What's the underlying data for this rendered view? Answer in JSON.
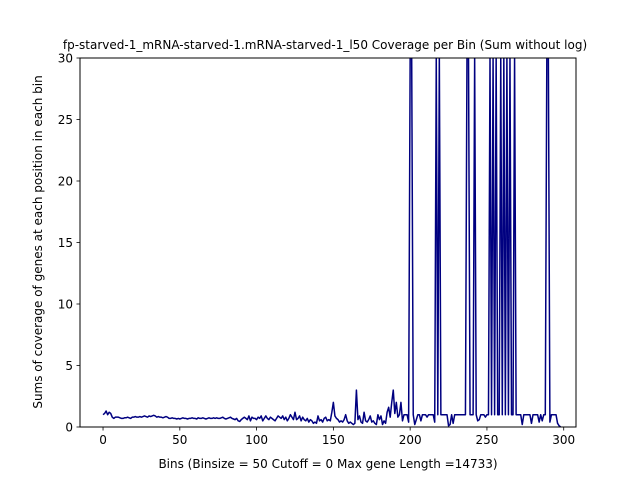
{
  "chart_data": {
    "type": "line",
    "title": "fp-starved-1_mRNA-starved-1.mRNA-starved-1_l50 Coverage per Bin (Sum without log)",
    "xlabel": "Bins  (Binsize = 50 Cutoff = 0 Max gene Length =14733)",
    "ylabel": "Sums of coverage of genes at each position in each bin",
    "xlim": [
      -15,
      308
    ],
    "ylim": [
      0,
      30
    ],
    "x_ticks": [
      0,
      50,
      100,
      150,
      200,
      250,
      300
    ],
    "y_ticks": [
      0,
      5,
      10,
      15,
      20,
      25,
      30
    ],
    "grid": false,
    "series": [
      {
        "color": "#000080",
        "x_start": 0,
        "x_step": 1,
        "values": [
          1.0,
          1.1,
          1.3,
          1.0,
          1.2,
          1.1,
          0.8,
          0.7,
          0.8,
          0.8,
          0.8,
          0.75,
          0.7,
          0.7,
          0.75,
          0.75,
          0.8,
          0.75,
          0.7,
          0.8,
          0.8,
          0.85,
          0.8,
          0.8,
          0.85,
          0.8,
          0.85,
          0.9,
          0.85,
          0.8,
          0.9,
          0.85,
          0.9,
          0.95,
          0.9,
          0.8,
          0.85,
          0.8,
          0.8,
          0.75,
          0.8,
          0.85,
          0.8,
          0.7,
          0.7,
          0.75,
          0.7,
          0.7,
          0.65,
          0.7,
          0.65,
          0.7,
          0.75,
          0.7,
          0.7,
          0.65,
          0.7,
          0.7,
          0.75,
          0.7,
          0.7,
          0.65,
          0.75,
          0.7,
          0.7,
          0.75,
          0.7,
          0.65,
          0.7,
          0.75,
          0.7,
          0.7,
          0.75,
          0.7,
          0.75,
          0.7,
          0.7,
          0.75,
          0.8,
          0.7,
          0.65,
          0.7,
          0.75,
          0.8,
          0.7,
          0.65,
          0.6,
          0.7,
          0.5,
          0.45,
          0.6,
          0.7,
          0.8,
          0.7,
          0.6,
          0.9,
          0.5,
          0.8,
          0.7,
          0.7,
          0.6,
          0.8,
          0.7,
          0.9,
          0.5,
          0.7,
          0.9,
          0.7,
          0.6,
          0.8,
          0.7,
          0.6,
          0.5,
          0.7,
          0.9,
          0.8,
          0.7,
          0.9,
          0.6,
          0.8,
          0.5,
          0.7,
          1.0,
          0.8,
          0.6,
          1.2,
          0.6,
          0.7,
          0.9,
          0.5,
          0.8,
          0.6,
          0.5,
          0.7,
          0.4,
          0.6,
          0.5,
          0.3,
          0.4,
          0.3,
          0.9,
          0.5,
          0.6,
          0.4,
          0.7,
          0.8,
          0.5,
          0.6,
          0.5,
          1.2,
          2.0,
          0.9,
          0.7,
          0.6,
          0.4,
          0.5,
          0.4,
          0.6,
          1.0,
          0.5,
          0.3,
          0.4,
          0.3,
          0.2,
          0.3,
          3.0,
          0.6,
          0.9,
          0.4,
          0.3,
          1.2,
          0.5,
          0.4,
          0.6,
          0.9,
          0.4,
          0.5,
          0.3,
          0.2,
          1.0,
          0.6,
          0.9,
          0.2,
          0.5,
          0.3,
          1.2,
          1.6,
          0.8,
          2.0,
          3.0,
          1.1,
          2.0,
          0.8,
          1.0,
          2.0,
          0.5,
          1.0,
          1.0,
          1.0,
          0.4,
          30,
          30,
          1.0,
          0.2,
          0.6,
          1.0,
          1.0,
          0.5,
          1.0,
          1.0,
          1.0,
          0.8,
          1.0,
          1.0,
          1.0,
          1.0,
          0.4,
          30,
          1.0,
          30,
          1.0,
          1.0,
          1.0,
          1.0,
          1.0,
          0.1,
          0.2,
          1.0,
          0.3,
          1.0,
          1.0,
          1.0,
          1.0,
          1.0,
          1.0,
          1.0,
          1.0,
          30,
          30,
          1.0,
          1.0,
          1.0,
          30,
          1.0,
          0.5,
          0.6,
          1.0,
          1.0,
          1.0,
          0.8,
          1.0,
          1.0,
          30,
          1.0,
          30,
          1.0,
          30,
          1.0,
          1.0,
          30,
          1.0,
          30,
          1.0,
          30,
          1.0,
          30,
          1.0,
          1.0,
          30,
          1.0,
          1.0,
          1.0,
          1.0,
          0.2,
          1.0,
          1.0,
          1.0,
          1.0,
          1.0,
          0.3,
          1.0,
          1.0,
          1.0,
          1.0,
          0.4,
          1.0,
          0.5,
          1.0,
          1.0,
          30,
          30,
          0.4,
          1.0,
          1.0,
          1.0,
          1.0,
          0.3,
          0.1,
          0.0
        ]
      }
    ]
  }
}
